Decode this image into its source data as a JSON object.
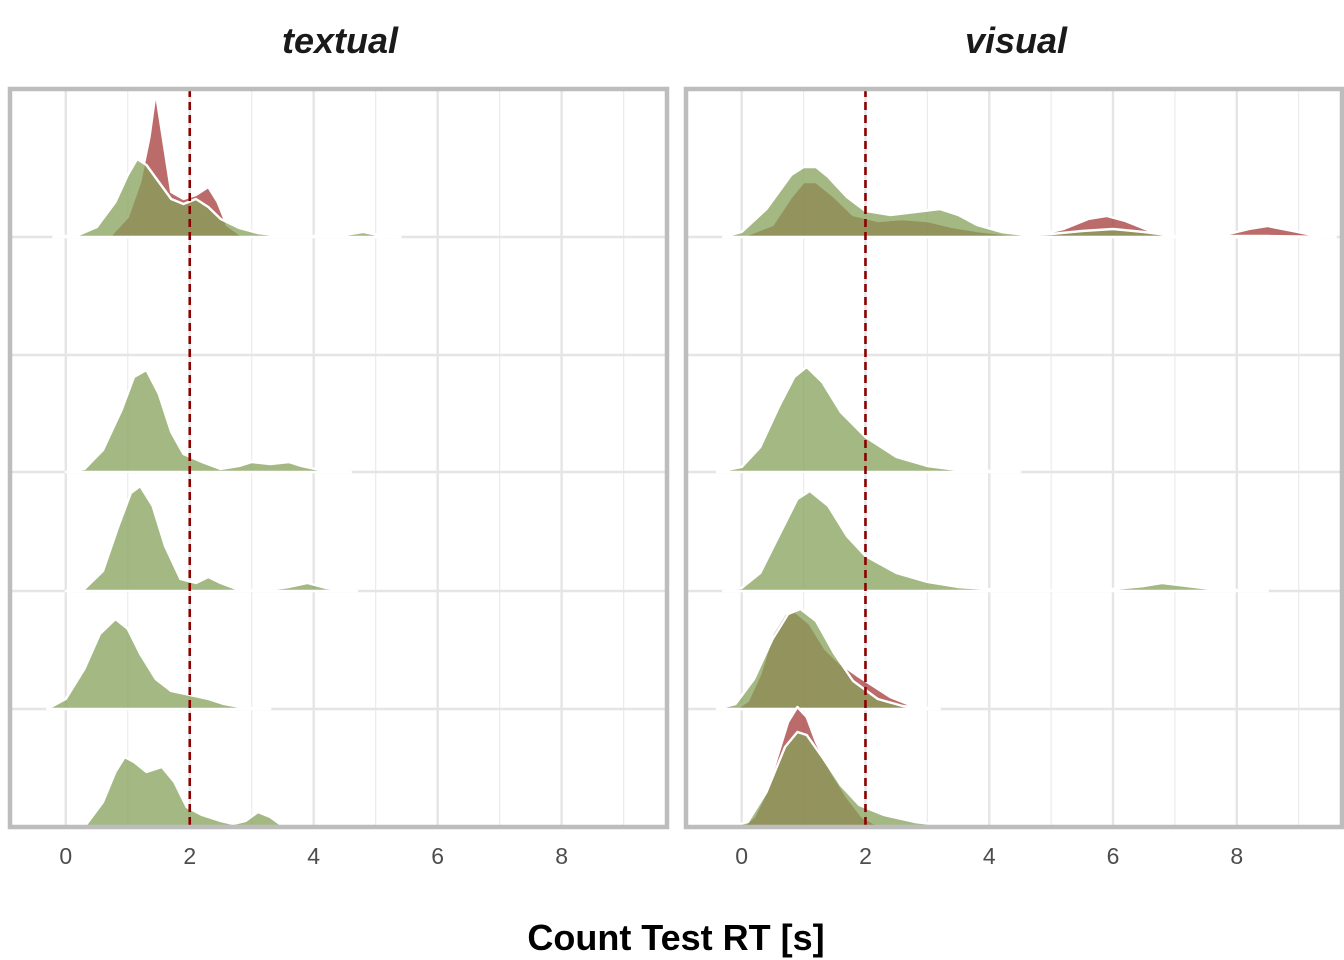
{
  "chart_data": {
    "type": "ridgeline-density",
    "xlabel": "Count Test RT [s]",
    "xlim": [
      -0.9,
      9.7
    ],
    "x_ticks": [
      0,
      2,
      4,
      6,
      8
    ],
    "reference_line": {
      "x": 2,
      "color": "#8b0000",
      "style": "dashed"
    },
    "row_count": 6,
    "row_height_units": 1.19,
    "series_colors": {
      "red": "#a63a3a",
      "green": "#86a05a"
    },
    "outline_color": "#ffffff",
    "grid": true,
    "panels": [
      {
        "title": "textual",
        "rows": [
          {
            "row": 0,
            "green": [
              [
                -0.2,
                0
              ],
              [
                0.2,
                0.02
              ],
              [
                0.5,
                0.1
              ],
              [
                0.8,
                0.35
              ],
              [
                1.0,
                0.62
              ],
              [
                1.15,
                0.78
              ],
              [
                1.3,
                0.72
              ],
              [
                1.5,
                0.55
              ],
              [
                1.7,
                0.38
              ],
              [
                1.9,
                0.33
              ],
              [
                2.1,
                0.38
              ],
              [
                2.3,
                0.3
              ],
              [
                2.5,
                0.18
              ],
              [
                2.8,
                0.09
              ],
              [
                3.1,
                0.04
              ],
              [
                3.5,
                0.01
              ],
              [
                4.0,
                0.01
              ],
              [
                4.5,
                0.02
              ],
              [
                4.8,
                0.05
              ],
              [
                5.1,
                0.01
              ],
              [
                5.4,
                0
              ]
            ],
            "red": [
              [
                0.7,
                0
              ],
              [
                1.0,
                0.2
              ],
              [
                1.2,
                0.55
              ],
              [
                1.35,
                1.0
              ],
              [
                1.45,
                1.45
              ],
              [
                1.55,
                1.05
              ],
              [
                1.7,
                0.45
              ],
              [
                1.9,
                0.38
              ],
              [
                2.1,
                0.42
              ],
              [
                2.3,
                0.5
              ],
              [
                2.45,
                0.35
              ],
              [
                2.6,
                0.12
              ],
              [
                2.8,
                0.03
              ],
              [
                3.0,
                0
              ]
            ]
          },
          {
            "row": 1
          },
          {
            "row": 2,
            "green": [
              [
                0,
                0
              ],
              [
                0.3,
                0.03
              ],
              [
                0.6,
                0.22
              ],
              [
                0.9,
                0.62
              ],
              [
                1.1,
                0.95
              ],
              [
                1.3,
                1.02
              ],
              [
                1.5,
                0.78
              ],
              [
                1.7,
                0.4
              ],
              [
                1.9,
                0.18
              ],
              [
                2.2,
                0.1
              ],
              [
                2.5,
                0.03
              ],
              [
                2.8,
                0.06
              ],
              [
                3.0,
                0.1
              ],
              [
                3.3,
                0.08
              ],
              [
                3.6,
                0.1
              ],
              [
                3.8,
                0.06
              ],
              [
                4.1,
                0.02
              ],
              [
                4.6,
                0
              ]
            ]
          },
          {
            "row": 3,
            "green": [
              [
                0,
                0
              ],
              [
                0.3,
                0.02
              ],
              [
                0.6,
                0.2
              ],
              [
                0.85,
                0.65
              ],
              [
                1.05,
                0.98
              ],
              [
                1.2,
                1.05
              ],
              [
                1.4,
                0.85
              ],
              [
                1.6,
                0.45
              ],
              [
                1.85,
                0.12
              ],
              [
                2.1,
                0.08
              ],
              [
                2.3,
                0.14
              ],
              [
                2.5,
                0.08
              ],
              [
                2.8,
                0.01
              ],
              [
                3.2,
                0.01
              ],
              [
                3.6,
                0.04
              ],
              [
                3.9,
                0.08
              ],
              [
                4.2,
                0.03
              ],
              [
                4.7,
                0
              ]
            ]
          },
          {
            "row": 4,
            "green": [
              [
                -0.3,
                0
              ],
              [
                0,
                0.1
              ],
              [
                0.3,
                0.4
              ],
              [
                0.55,
                0.75
              ],
              [
                0.8,
                0.9
              ],
              [
                1.0,
                0.8
              ],
              [
                1.2,
                0.55
              ],
              [
                1.45,
                0.3
              ],
              [
                1.7,
                0.18
              ],
              [
                2.0,
                0.14
              ],
              [
                2.3,
                0.1
              ],
              [
                2.55,
                0.05
              ],
              [
                2.9,
                0.01
              ],
              [
                3.3,
                0
              ]
            ]
          },
          {
            "row": 5,
            "green": [
              [
                0.3,
                0
              ],
              [
                0.6,
                0.25
              ],
              [
                0.8,
                0.55
              ],
              [
                0.95,
                0.7
              ],
              [
                1.1,
                0.65
              ],
              [
                1.3,
                0.55
              ],
              [
                1.55,
                0.6
              ],
              [
                1.75,
                0.45
              ],
              [
                1.95,
                0.2
              ],
              [
                2.2,
                0.12
              ],
              [
                2.5,
                0.06
              ],
              [
                2.7,
                0.03
              ],
              [
                2.9,
                0.06
              ],
              [
                3.1,
                0.15
              ],
              [
                3.3,
                0.1
              ],
              [
                3.5,
                0.01
              ],
              [
                3.9,
                0
              ]
            ]
          }
        ]
      },
      {
        "title": "visual",
        "rows": [
          {
            "row": 0,
            "green": [
              [
                -0.3,
                0
              ],
              [
                0,
                0.05
              ],
              [
                0.4,
                0.28
              ],
              [
                0.8,
                0.62
              ],
              [
                1.0,
                0.7
              ],
              [
                1.2,
                0.7
              ],
              [
                1.4,
                0.6
              ],
              [
                1.7,
                0.4
              ],
              [
                2.0,
                0.26
              ],
              [
                2.4,
                0.22
              ],
              [
                2.8,
                0.25
              ],
              [
                3.2,
                0.28
              ],
              [
                3.5,
                0.22
              ],
              [
                3.8,
                0.12
              ],
              [
                4.2,
                0.05
              ],
              [
                4.6,
                0.02
              ],
              [
                5.0,
                0.03
              ],
              [
                5.5,
                0.06
              ],
              [
                6.0,
                0.08
              ],
              [
                6.5,
                0.05
              ],
              [
                7.0,
                0.01
              ],
              [
                7.5,
                0.005
              ],
              [
                8.0,
                0.01
              ],
              [
                8.5,
                0.01
              ],
              [
                9.0,
                0.005
              ],
              [
                9.4,
                0
              ]
            ],
            "red": [
              [
                0,
                0
              ],
              [
                0.5,
                0.12
              ],
              [
                0.8,
                0.4
              ],
              [
                1.0,
                0.55
              ],
              [
                1.2,
                0.55
              ],
              [
                1.5,
                0.4
              ],
              [
                1.8,
                0.22
              ],
              [
                2.2,
                0.16
              ],
              [
                2.6,
                0.18
              ],
              [
                3.0,
                0.16
              ],
              [
                3.4,
                0.1
              ],
              [
                3.8,
                0.06
              ],
              [
                4.1,
                0.04
              ],
              [
                4.4,
                0.02
              ],
              [
                4.8,
                0.02
              ],
              [
                5.2,
                0.08
              ],
              [
                5.6,
                0.18
              ],
              [
                5.9,
                0.21
              ],
              [
                6.2,
                0.16
              ],
              [
                6.6,
                0.06
              ],
              [
                7.0,
                0.01
              ],
              [
                7.5,
                0
              ],
              [
                7.8,
                0.02
              ],
              [
                8.2,
                0.08
              ],
              [
                8.5,
                0.11
              ],
              [
                8.9,
                0.06
              ],
              [
                9.3,
                0.01
              ],
              [
                9.6,
                0
              ]
            ]
          },
          {
            "row": 1
          },
          {
            "row": 2,
            "green": [
              [
                -0.4,
                0
              ],
              [
                0,
                0.05
              ],
              [
                0.3,
                0.25
              ],
              [
                0.6,
                0.65
              ],
              [
                0.85,
                0.95
              ],
              [
                1.05,
                1.05
              ],
              [
                1.3,
                0.9
              ],
              [
                1.6,
                0.6
              ],
              [
                2.0,
                0.35
              ],
              [
                2.5,
                0.15
              ],
              [
                3.0,
                0.06
              ],
              [
                3.5,
                0.02
              ],
              [
                4.0,
                0.01
              ],
              [
                4.5,
                0
              ]
            ]
          },
          {
            "row": 3,
            "green": [
              [
                -0.3,
                0
              ],
              [
                0,
                0.03
              ],
              [
                0.3,
                0.18
              ],
              [
                0.6,
                0.55
              ],
              [
                0.9,
                0.92
              ],
              [
                1.1,
                1.0
              ],
              [
                1.4,
                0.85
              ],
              [
                1.7,
                0.55
              ],
              [
                2.0,
                0.35
              ],
              [
                2.5,
                0.18
              ],
              [
                3.0,
                0.09
              ],
              [
                3.5,
                0.04
              ],
              [
                4.0,
                0.02
              ],
              [
                4.5,
                0.01
              ],
              [
                5.0,
                0.005
              ],
              [
                5.5,
                0.01
              ],
              [
                6.0,
                0.02
              ],
              [
                6.5,
                0.05
              ],
              [
                6.8,
                0.08
              ],
              [
                7.2,
                0.05
              ],
              [
                7.6,
                0.02
              ],
              [
                8.0,
                0.01
              ],
              [
                8.5,
                0
              ]
            ]
          },
          {
            "row": 4,
            "green": [
              [
                -0.4,
                0
              ],
              [
                -0.1,
                0.05
              ],
              [
                0.2,
                0.3
              ],
              [
                0.5,
                0.7
              ],
              [
                0.75,
                0.95
              ],
              [
                0.95,
                1.0
              ],
              [
                1.2,
                0.88
              ],
              [
                1.5,
                0.55
              ],
              [
                1.8,
                0.28
              ],
              [
                2.2,
                0.1
              ],
              [
                2.6,
                0.03
              ],
              [
                3.0,
                0
              ]
            ],
            "red": [
              [
                -0.1,
                0
              ],
              [
                0.1,
                0.08
              ],
              [
                0.3,
                0.35
              ],
              [
                0.5,
                0.75
              ],
              [
                0.7,
                0.95
              ],
              [
                0.85,
                0.98
              ],
              [
                1.1,
                0.85
              ],
              [
                1.35,
                0.6
              ],
              [
                1.6,
                0.45
              ],
              [
                1.9,
                0.32
              ],
              [
                2.15,
                0.22
              ],
              [
                2.4,
                0.12
              ],
              [
                2.8,
                0.02
              ],
              [
                3.2,
                0
              ]
            ]
          },
          {
            "row": 5,
            "green": [
              [
                -0.2,
                0
              ],
              [
                0.1,
                0.05
              ],
              [
                0.4,
                0.35
              ],
              [
                0.7,
                0.8
              ],
              [
                0.9,
                0.95
              ],
              [
                1.05,
                0.92
              ],
              [
                1.3,
                0.7
              ],
              [
                1.6,
                0.42
              ],
              [
                1.9,
                0.22
              ],
              [
                2.3,
                0.12
              ],
              [
                2.8,
                0.05
              ],
              [
                3.2,
                0.02
              ],
              [
                3.6,
                0
              ]
            ],
            "red": [
              [
                0,
                0
              ],
              [
                0.2,
                0.1
              ],
              [
                0.4,
                0.35
              ],
              [
                0.6,
                0.75
              ],
              [
                0.75,
                1.05
              ],
              [
                0.9,
                1.2
              ],
              [
                1.05,
                1.1
              ],
              [
                1.2,
                0.85
              ],
              [
                1.45,
                0.55
              ],
              [
                1.7,
                0.3
              ],
              [
                1.95,
                0.1
              ],
              [
                2.2,
                0.02
              ],
              [
                2.5,
                0
              ]
            ]
          }
        ]
      }
    ]
  }
}
